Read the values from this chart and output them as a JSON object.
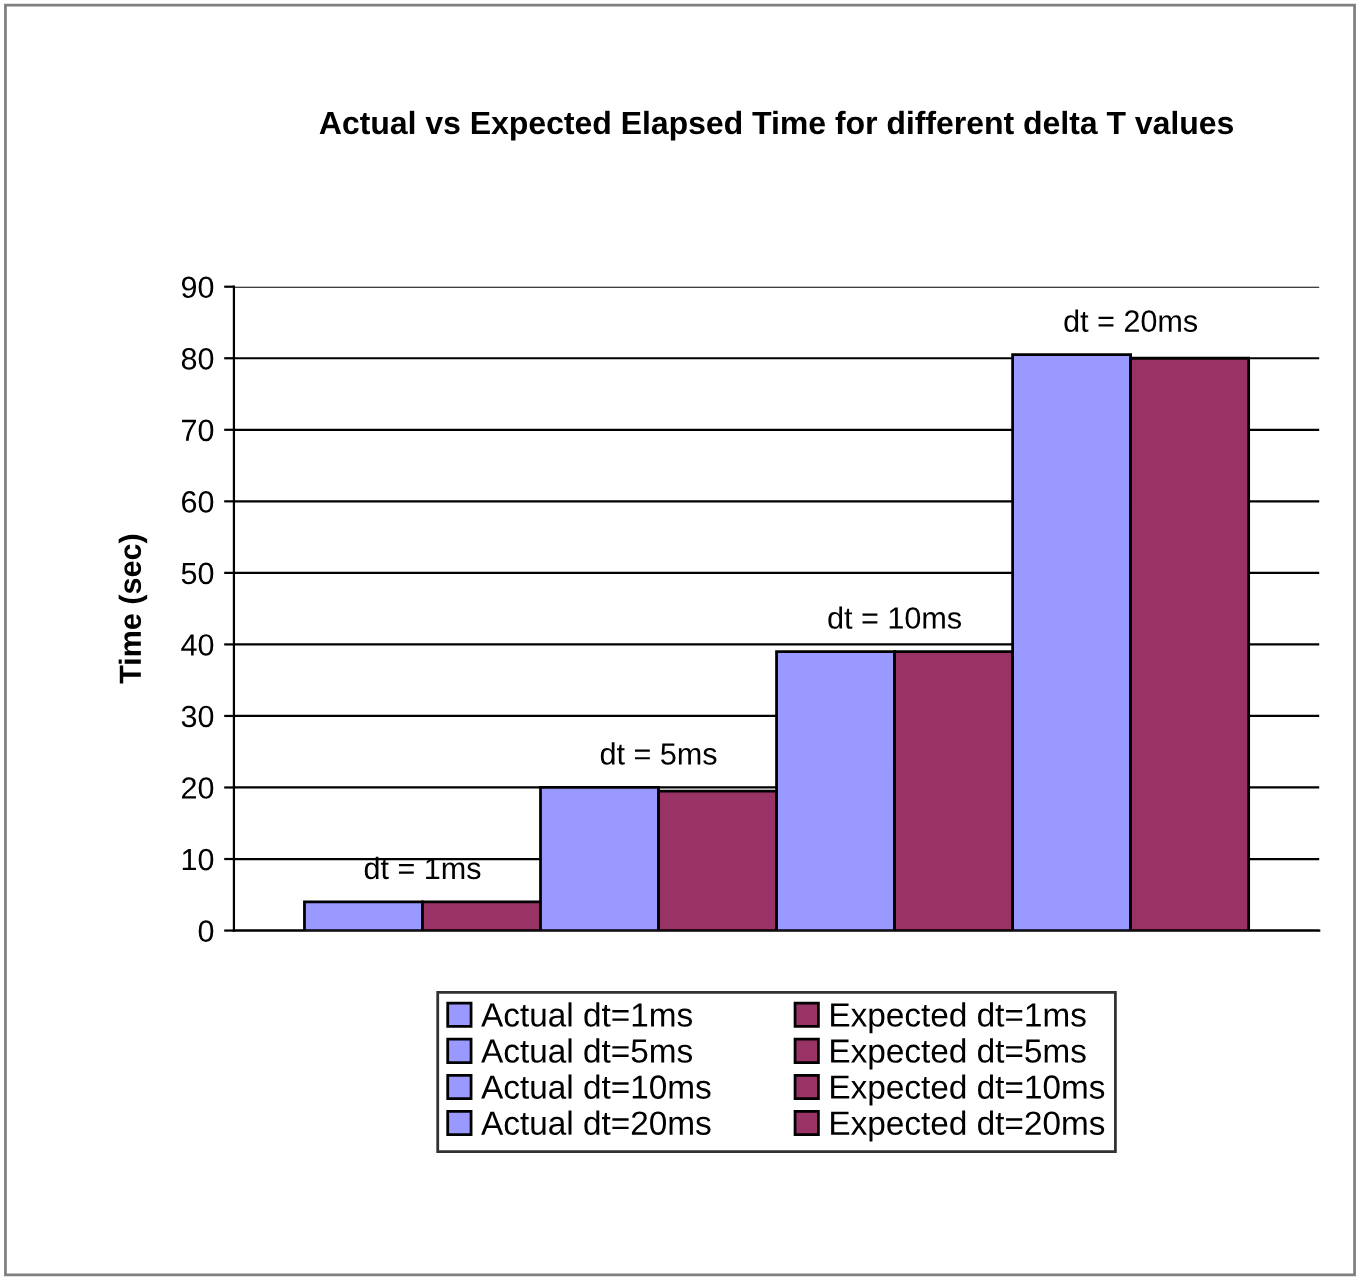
{
  "chart_data": {
    "type": "bar",
    "title": "Actual vs Expected Elapsed Time for different delta T values",
    "ylabel": "Time (sec)",
    "categories": [
      null
    ],
    "series": [
      {
        "name": "Actual dt=1ms",
        "color": "#9999ff",
        "values": [
          4
        ]
      },
      {
        "name": "Expected dt=1ms",
        "color": "#993366",
        "values": [
          4
        ]
      },
      {
        "name": "Actual dt=5ms",
        "color": "#9999ff",
        "values": [
          20
        ]
      },
      {
        "name": "Expected dt=5ms",
        "color": "#993366",
        "values": [
          19.5
        ]
      },
      {
        "name": "Actual dt=10ms",
        "color": "#9999ff",
        "values": [
          39
        ]
      },
      {
        "name": "Expected dt=10ms",
        "color": "#993366",
        "values": [
          39
        ]
      },
      {
        "name": "Actual dt=20ms",
        "color": "#9999ff",
        "values": [
          80.5
        ]
      },
      {
        "name": "Expected dt=20ms",
        "color": "#993366",
        "values": [
          80
        ]
      }
    ],
    "annotations": [
      "dt = 1ms",
      "dt = 5ms",
      "dt = 10ms",
      "dt = 20ms"
    ],
    "ylim": [
      0,
      90
    ],
    "yticks": [
      0,
      10,
      20,
      30,
      40,
      50,
      60,
      70,
      80,
      90
    ],
    "grid": "y",
    "legend": "bottom",
    "tick_labels": "y"
  }
}
